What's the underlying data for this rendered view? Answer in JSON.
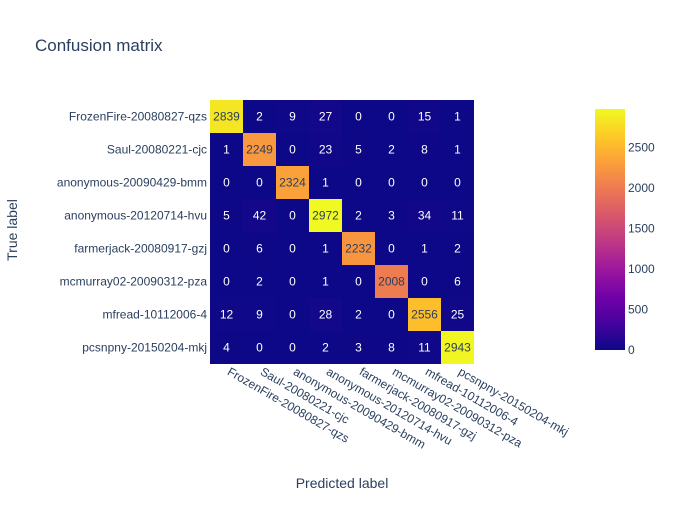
{
  "chart_data": {
    "type": "heatmap",
    "title": "Confusion matrix",
    "xlabel": "Predicted label",
    "ylabel": "True label",
    "x_categories": [
      "FrozenFire-20080827-qzs",
      "Saul-20080221-cjc",
      "anonymous-20090429-bmm",
      "anonymous-20120714-hvu",
      "farmerjack-20080917-gzj",
      "mcmurray02-20090312-pza",
      "mfread-10112006-4",
      "pcsnpny-20150204-mkj"
    ],
    "y_categories": [
      "FrozenFire-20080827-qzs",
      "Saul-20080221-cjc",
      "anonymous-20090429-bmm",
      "anonymous-20120714-hvu",
      "farmerjack-20080917-gzj",
      "mcmurray02-20090312-pza",
      "mfread-10112006-4",
      "pcsnpny-20150204-mkj"
    ],
    "values": [
      [
        2839,
        2,
        9,
        27,
        0,
        0,
        15,
        1
      ],
      [
        1,
        2249,
        0,
        23,
        5,
        2,
        8,
        1
      ],
      [
        0,
        0,
        2324,
        1,
        0,
        0,
        0,
        0
      ],
      [
        5,
        42,
        0,
        2972,
        2,
        3,
        34,
        11
      ],
      [
        0,
        6,
        0,
        1,
        2232,
        0,
        1,
        2
      ],
      [
        0,
        2,
        0,
        1,
        0,
        2008,
        0,
        6
      ],
      [
        12,
        9,
        0,
        28,
        2,
        0,
        2556,
        25
      ],
      [
        4,
        0,
        0,
        2,
        3,
        8,
        11,
        2943
      ]
    ],
    "zmin": 0,
    "zmax": 2972,
    "colorscale": "plasma",
    "colorbar_ticks": [
      0,
      500,
      1000,
      1500,
      2000,
      2500
    ],
    "colorbar_tick_labels": [
      "0",
      "500",
      "1000",
      "1500",
      "2000",
      "2500"
    ],
    "grid": false,
    "show_cell_text": true
  }
}
